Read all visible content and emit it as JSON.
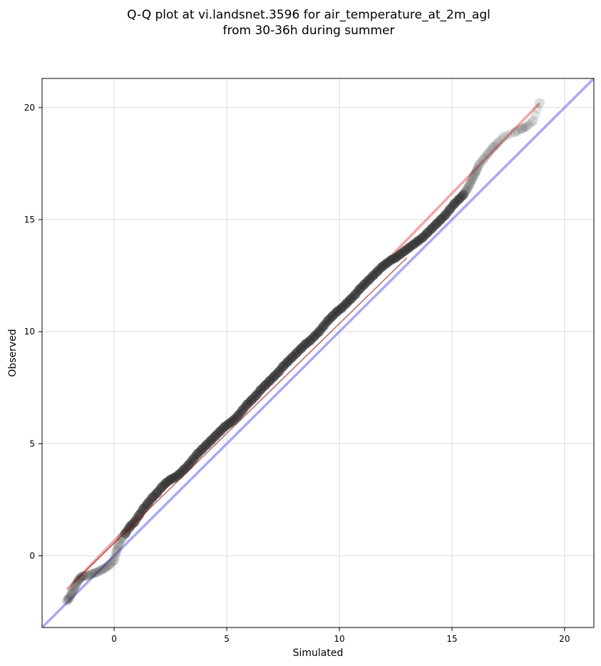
{
  "chart_data": {
    "type": "scatter",
    "title": "Q-Q plot at vi.landsnet.3596 for air_temperature_at_2m_agl",
    "subtitle": "from 30-36h during summer",
    "xlabel": "Simulated",
    "ylabel": "Observed",
    "xlim": [
      -3.2,
      21.3
    ],
    "ylim": [
      -3.2,
      21.3
    ],
    "xticks": [
      0,
      5,
      10,
      15,
      20
    ],
    "yticks": [
      0,
      5,
      10,
      15,
      20
    ],
    "grid": true,
    "colors": {
      "points": "#333333",
      "fit_line": "#f08080",
      "reference_line": "#7b7bf0",
      "trend_line": "#8b0000",
      "grid": "#e6e6e6"
    },
    "reference_line": {
      "x": [
        -3.2,
        21.3
      ],
      "y": [
        -3.2,
        21.3
      ]
    },
    "fit_line": {
      "x": [
        -2.1,
        18.9
      ],
      "y": [
        -1.5,
        20.2
      ]
    },
    "trend_line": {
      "x": [
        -1.8,
        13.0
      ],
      "y": [
        -1.2,
        13.3
      ]
    },
    "quantiles": {
      "x": [
        -2.1,
        -2.0,
        -1.9,
        -1.8,
        -1.7,
        -1.6,
        -1.5,
        -1.4,
        -1.2,
        -1.0,
        -0.8,
        -0.6,
        -0.4,
        -0.2,
        0.0,
        0.1,
        0.2,
        0.35,
        0.5,
        0.7,
        0.9,
        1.1,
        1.3,
        1.5,
        1.7,
        1.9,
        2.1,
        2.3,
        2.5,
        2.7,
        2.9,
        3.1,
        3.3,
        3.5,
        3.7,
        3.9,
        4.1,
        4.3,
        4.5,
        4.7,
        4.9,
        5.1,
        5.3,
        5.5,
        5.7,
        5.9,
        6.1,
        6.3,
        6.5,
        6.7,
        6.9,
        7.1,
        7.3,
        7.5,
        7.7,
        7.9,
        8.1,
        8.3,
        8.5,
        8.7,
        8.9,
        9.1,
        9.3,
        9.5,
        9.7,
        9.9,
        10.1,
        10.3,
        10.5,
        10.7,
        10.9,
        11.1,
        11.3,
        11.5,
        11.7,
        11.9,
        12.1,
        12.3,
        12.5,
        12.7,
        12.9,
        13.1,
        13.3,
        13.5,
        13.7,
        13.9,
        14.1,
        14.3,
        14.5,
        14.7,
        14.9,
        15.1,
        15.3,
        15.5,
        15.6,
        15.7,
        15.8,
        15.9,
        16.0,
        16.1,
        16.2,
        16.4,
        16.6,
        16.8,
        17.0,
        17.3,
        17.8,
        18.1,
        18.3,
        18.6,
        18.9
      ],
      "y": [
        -2.0,
        -1.9,
        -1.7,
        -1.5,
        -1.3,
        -1.1,
        -1.0,
        -0.9,
        -0.9,
        -0.8,
        -0.75,
        -0.65,
        -0.55,
        -0.4,
        -0.2,
        0.2,
        0.5,
        0.8,
        1.0,
        1.3,
        1.5,
        1.8,
        2.1,
        2.35,
        2.6,
        2.8,
        3.05,
        3.25,
        3.4,
        3.5,
        3.65,
        3.85,
        4.05,
        4.3,
        4.55,
        4.75,
        4.95,
        5.15,
        5.35,
        5.55,
        5.75,
        5.9,
        6.05,
        6.25,
        6.5,
        6.75,
        6.95,
        7.15,
        7.4,
        7.6,
        7.8,
        8.0,
        8.2,
        8.45,
        8.65,
        8.85,
        9.05,
        9.25,
        9.45,
        9.6,
        9.8,
        10.0,
        10.25,
        10.5,
        10.7,
        10.9,
        11.05,
        11.25,
        11.45,
        11.65,
        11.9,
        12.1,
        12.3,
        12.5,
        12.7,
        12.9,
        13.05,
        13.2,
        13.3,
        13.45,
        13.6,
        13.75,
        13.9,
        14.05,
        14.2,
        14.4,
        14.6,
        14.8,
        15.0,
        15.2,
        15.45,
        15.7,
        15.9,
        16.1,
        16.25,
        16.4,
        16.6,
        16.8,
        17.0,
        17.2,
        17.45,
        17.7,
        17.95,
        18.2,
        18.4,
        18.7,
        18.9,
        19.05,
        19.15,
        19.4,
        20.2
      ]
    }
  }
}
